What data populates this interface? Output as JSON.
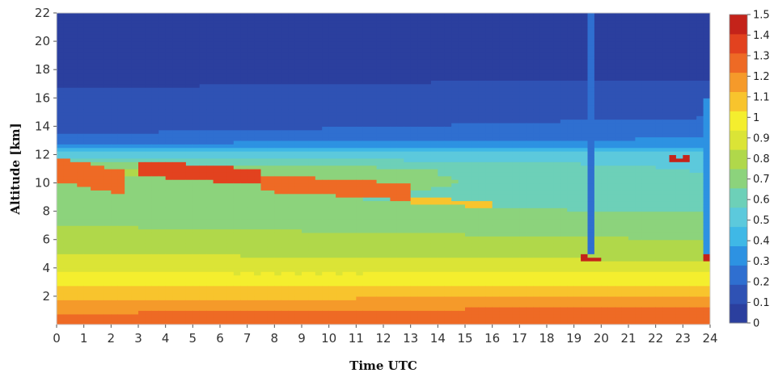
{
  "chart_data": {
    "type": "heatmap",
    "title": "",
    "xlabel": "Time UTC",
    "ylabel": "Altitude [km]",
    "xlim": [
      0,
      24
    ],
    "ylim": [
      0,
      22
    ],
    "x_ticks": [
      "0",
      "1",
      "2",
      "3",
      "4",
      "5",
      "6",
      "7",
      "8",
      "9",
      "10",
      "11",
      "12",
      "13",
      "14",
      "15",
      "16",
      "17",
      "18",
      "19",
      "20",
      "21",
      "22",
      "23",
      "24"
    ],
    "y_ticks": [
      "2",
      "4",
      "6",
      "8",
      "10",
      "12",
      "14",
      "16",
      "18",
      "20",
      "22"
    ],
    "colorbar": {
      "range": [
        0,
        1.5
      ],
      "ticks": [
        "0",
        "0.1",
        "0.2",
        "0.3",
        "0.4",
        "0.5",
        "0.6",
        "0.7",
        "0.8",
        "0.9",
        "1",
        "1.1",
        "1.2",
        "1.3",
        "1.4",
        "1.5"
      ],
      "colors": [
        "#2b3f9e",
        "#2f52b4",
        "#2f6fd0",
        "#2d92e2",
        "#3fb8e6",
        "#5cc9dc",
        "#6dd0b8",
        "#8cd37c",
        "#b0d84a",
        "#dbe436",
        "#f4ee2e",
        "#f8c42d",
        "#f59a2a",
        "#ee6a25",
        "#e2421f",
        "#c4231a"
      ]
    },
    "profile": {
      "altitudes_km": [
        0,
        0.5,
        1,
        1.5,
        2,
        2.5,
        3,
        3.5,
        4,
        5,
        6,
        7,
        8,
        9,
        10,
        11,
        12,
        12.5,
        13,
        14,
        16,
        18,
        20,
        22
      ],
      "values_early": [
        1.25,
        1.25,
        1.2,
        1.15,
        1.1,
        1.05,
        1.0,
        0.95,
        0.9,
        0.85,
        0.8,
        0.75,
        0.7,
        0.7,
        0.75,
        0.8,
        0.5,
        0.4,
        0.22,
        0.15,
        0.1,
        0.08,
        0.06,
        0.05
      ],
      "values_late": [
        1.3,
        1.3,
        1.25,
        1.2,
        1.12,
        1.08,
        1.0,
        0.95,
        0.9,
        0.8,
        0.75,
        0.7,
        0.65,
        0.6,
        0.6,
        0.55,
        0.5,
        0.4,
        0.3,
        0.22,
        0.12,
        0.08,
        0.06,
        0.05
      ]
    },
    "cloud_layers": [
      {
        "start_time": 0.0,
        "end_time": 2.5,
        "top_km": 11.8,
        "bottom_km": 9.2,
        "value": 1.25
      },
      {
        "start_time": 3.0,
        "end_time": 7.5,
        "top_km": 11.6,
        "bottom_km": 9.9,
        "value": 1.4
      },
      {
        "start_time": 7.5,
        "end_time": 13.0,
        "top_km": 10.6,
        "bottom_km": 8.8,
        "value": 1.3
      },
      {
        "start_time": 13.0,
        "end_time": 16.0,
        "top_km": 9.0,
        "bottom_km": 8.3,
        "value": 1.05
      },
      {
        "start_time": 19.3,
        "end_time": 19.9,
        "top_km": 4.9,
        "bottom_km": 4.5,
        "value": 1.5
      },
      {
        "start_time": 22.6,
        "end_time": 23.0,
        "top_km": 12.0,
        "bottom_km": 11.3,
        "value": 1.45
      },
      {
        "start_time": 23.1,
        "end_time": 23.3,
        "top_km": 12.1,
        "bottom_km": 11.4,
        "value": 1.45
      },
      {
        "start_time": 23.7,
        "end_time": 24.0,
        "top_km": 5.0,
        "bottom_km": 4.5,
        "value": 1.5
      }
    ],
    "low_signal_columns": [
      {
        "time": 19.6,
        "bottom_km": 5.0,
        "top_km": 22,
        "value": 0.25
      },
      {
        "time": 23.8,
        "bottom_km": 5.0,
        "top_km": 16,
        "value": 0.3
      }
    ],
    "grid": false,
    "legend": "colorbar-right"
  }
}
